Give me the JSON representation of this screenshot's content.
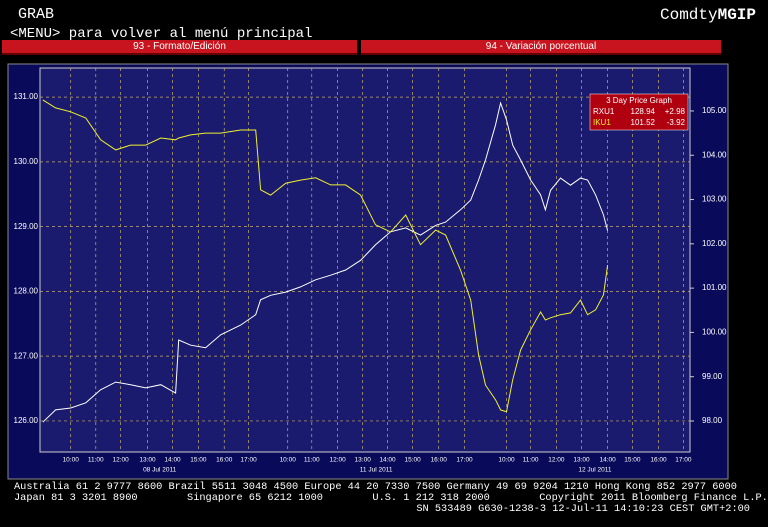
{
  "screen": {
    "header_left": "GRAB",
    "header_right_prefix": "Comdty",
    "header_right_code": "MGIP",
    "menu": "<MENU> para volver al menú principal",
    "tabs": [
      "93 - Formato/Edición",
      "94 - Variación porcentual"
    ],
    "footer": [
      "Australia 61 2 9777 8600 Brazil 5511 3048 4500 Europe 44 20 7330 7500 Germany 49 69 9204 1210 Hong Kong 852 2977 6000",
      "Japan 81 3 3201 8900        Singapore 65 6212 1000        U.S. 1 212 318 2000        Copyright 2011 Bloomberg Finance L.P.",
      "SN 533489 G630-1238-3 12-Jul-11 14:10:23 CEST GMT+2:00"
    ]
  },
  "chart_data": {
    "type": "line",
    "legend_title": "3 Day Price Graph",
    "grid": true,
    "x": [
      -0.09,
      0.41,
      1,
      1.59,
      2.17,
      2.76,
      3.34,
      3.93,
      4.52,
      5.1,
      5.22,
      5.69,
      6.27,
      6.86,
      7.64,
      8.23,
      8.42,
      8.81,
      9.4,
      9.98,
      10.57,
      11.16,
      11.74,
      12.33,
      12.91,
      13.5,
      14.09,
      14.67,
      15.26,
      15.65,
      16.23,
      16.63,
      16.94,
      17.21,
      17.6,
      17.8,
      18.03,
      18.27,
      18.58,
      18.97,
      19.36,
      19.55,
      19.75,
      20.14,
      20.53,
      20.92,
      21.2,
      21.51,
      21.82,
      21.98
    ],
    "xlim": [
      -0.2,
      25.2
    ],
    "xticks": [
      {
        "value": 1,
        "label": "10:00"
      },
      {
        "value": 1.98,
        "label": "11:00"
      },
      {
        "value": 2.95,
        "label": "12:00"
      },
      {
        "value": 4,
        "label": "13:00"
      },
      {
        "value": 4.98,
        "label": "14:00"
      },
      {
        "value": 5.99,
        "label": "15:00"
      },
      {
        "value": 7,
        "label": "16:00"
      },
      {
        "value": 7.95,
        "label": "17:00"
      },
      {
        "value": 9.48,
        "label": "10:00"
      },
      {
        "value": 10.42,
        "label": "11:00"
      },
      {
        "value": 11.43,
        "label": "12:00"
      },
      {
        "value": 12.41,
        "label": "13:00"
      },
      {
        "value": 13.38,
        "label": "14:00"
      },
      {
        "value": 14.36,
        "label": "15:00"
      },
      {
        "value": 15.38,
        "label": "16:00"
      },
      {
        "value": 16.39,
        "label": "17:00"
      },
      {
        "value": 18.03,
        "label": "10:00"
      },
      {
        "value": 18.97,
        "label": "11:00"
      },
      {
        "value": 19.98,
        "label": "12:00"
      },
      {
        "value": 20.96,
        "label": "13:00"
      },
      {
        "value": 21.98,
        "label": "14:00"
      },
      {
        "value": 22.95,
        "label": "15:00"
      },
      {
        "value": 23.97,
        "label": "16:00"
      },
      {
        "value": 24.94,
        "label": "17:00"
      }
    ],
    "x_groups": [
      "08 Jul 2011",
      "11 Jul 2011",
      "12 Jul 2011"
    ],
    "ylim": [
      125.52,
      131.45
    ],
    "yticks": [
      {
        "value": 126,
        "label": "126.00"
      },
      {
        "value": 127,
        "label": "127.00"
      },
      {
        "value": 128,
        "label": "128.00"
      },
      {
        "value": 129,
        "label": "129.00"
      },
      {
        "value": 130,
        "label": "130.00"
      },
      {
        "value": 131,
        "label": "131.00"
      }
    ],
    "y2lim": [
      97.3,
      105.97
    ],
    "y2ticks": [
      {
        "value": 98,
        "label": "98.00"
      },
      {
        "value": 99,
        "label": "99.00"
      },
      {
        "value": 100,
        "label": "100.00"
      },
      {
        "value": 101,
        "label": "101.00"
      },
      {
        "value": 102,
        "label": "102.00"
      },
      {
        "value": 103,
        "label": "103.00"
      },
      {
        "value": 104,
        "label": "104.00"
      },
      {
        "value": 105,
        "label": "105.00"
      }
    ],
    "series": [
      {
        "name": "RXU1",
        "color": "#ffffff",
        "last": "128.94",
        "change": "+2.98",
        "values": [
          125.98,
          126.17,
          126.2,
          126.28,
          126.48,
          126.6,
          126.56,
          126.51,
          126.56,
          126.43,
          127.25,
          127.17,
          127.13,
          127.33,
          127.48,
          127.64,
          127.87,
          127.94,
          127.99,
          128.07,
          128.18,
          128.25,
          128.33,
          128.48,
          128.72,
          128.92,
          128.98,
          128.87,
          129.02,
          129.07,
          129.26,
          129.41,
          129.72,
          130.03,
          130.57,
          130.91,
          130.65,
          130.26,
          130.03,
          129.72,
          129.49,
          129.26,
          129.56,
          129.75,
          129.64,
          129.75,
          129.72,
          129.49,
          129.18,
          128.94
        ]
      },
      {
        "name": "IKU1",
        "color": "#f0f030",
        "axis": "y2",
        "last": "101.52",
        "change": "-3.92",
        "values": [
          105.25,
          105.07,
          104.98,
          104.84,
          104.35,
          104.12,
          104.23,
          104.23,
          104.39,
          104.35,
          104.39,
          104.46,
          104.5,
          104.5,
          104.57,
          104.57,
          103.22,
          103.1,
          103.37,
          103.44,
          103.49,
          103.33,
          103.33,
          103.1,
          102.43,
          102.27,
          102.65,
          101.98,
          102.31,
          102.2,
          101.41,
          100.73,
          99.49,
          98.81,
          98.48,
          98.25,
          98.21,
          98.93,
          99.6,
          100.06,
          100.46,
          100.28,
          100.33,
          100.4,
          100.44,
          100.73,
          100.4,
          100.51,
          100.85,
          101.52
        ]
      }
    ]
  }
}
